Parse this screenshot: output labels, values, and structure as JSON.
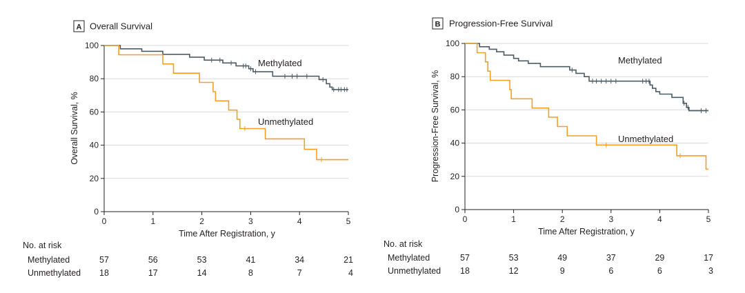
{
  "colors": {
    "methylated": "#4b5b65",
    "unmethylated": "#f29f26",
    "grid": "#d9d9d9",
    "axis": "#231f20"
  },
  "risk_title": "No. at risk",
  "chart_data": [
    {
      "type": "line",
      "panel_letter": "A",
      "title": "Overall Survival",
      "xlabel": "Time After Registration, y",
      "ylabel": "Overall Survival, %",
      "xlim": [
        0,
        5
      ],
      "ylim": [
        0,
        100
      ],
      "xticks": [
        "0",
        "1",
        "2",
        "3",
        "4",
        "5"
      ],
      "yticks": [
        "0",
        "20",
        "40",
        "60",
        "80",
        "100"
      ],
      "grid": true,
      "series": [
        {
          "name": "Methylated",
          "color": "#4b5b65",
          "steps": [
            [
              0,
              100
            ],
            [
              0.33,
              100
            ],
            [
              0.33,
              98
            ],
            [
              0.77,
              98
            ],
            [
              0.77,
              96.5
            ],
            [
              1.2,
              96.5
            ],
            [
              1.2,
              94.7
            ],
            [
              1.75,
              94.7
            ],
            [
              1.75,
              93
            ],
            [
              2.05,
              93
            ],
            [
              2.05,
              91.2
            ],
            [
              2.43,
              91.2
            ],
            [
              2.43,
              89.5
            ],
            [
              2.7,
              89.5
            ],
            [
              2.7,
              87.7
            ],
            [
              2.96,
              87.7
            ],
            [
              2.96,
              86
            ],
            [
              3.05,
              86
            ],
            [
              3.05,
              84.2
            ],
            [
              3.45,
              84.2
            ],
            [
              3.45,
              81.5
            ],
            [
              4.4,
              81.5
            ],
            [
              4.4,
              79.5
            ],
            [
              4.55,
              79.5
            ],
            [
              4.55,
              77
            ],
            [
              4.62,
              77
            ],
            [
              4.62,
              75
            ],
            [
              4.67,
              75
            ],
            [
              4.67,
              73.5
            ],
            [
              5.0,
              73.5
            ]
          ],
          "censors": [
            [
              2.2,
              91.2
            ],
            [
              2.37,
              91.2
            ],
            [
              2.6,
              89.5
            ],
            [
              2.85,
              87.7
            ],
            [
              2.9,
              87.7
            ],
            [
              3.0,
              86
            ],
            [
              3.1,
              84.2
            ],
            [
              3.7,
              81.5
            ],
            [
              3.85,
              81.5
            ],
            [
              3.95,
              81.5
            ],
            [
              4.15,
              81.5
            ],
            [
              4.48,
              79.5
            ],
            [
              4.7,
              73.5
            ],
            [
              4.8,
              73.5
            ],
            [
              4.85,
              73.5
            ],
            [
              4.92,
              73.5
            ],
            [
              4.97,
              73.5
            ]
          ],
          "label": "Methylated"
        },
        {
          "name": "Unmethylated",
          "color": "#f29f26",
          "steps": [
            [
              0,
              100
            ],
            [
              0.3,
              100
            ],
            [
              0.3,
              94.4
            ],
            [
              1.2,
              94.4
            ],
            [
              1.2,
              88.9
            ],
            [
              1.42,
              88.9
            ],
            [
              1.42,
              83.3
            ],
            [
              1.95,
              83.3
            ],
            [
              1.95,
              77.8
            ],
            [
              2.23,
              77.8
            ],
            [
              2.23,
              72.2
            ],
            [
              2.28,
              72.2
            ],
            [
              2.28,
              66.7
            ],
            [
              2.55,
              66.7
            ],
            [
              2.55,
              61.1
            ],
            [
              2.72,
              61.1
            ],
            [
              2.72,
              55.6
            ],
            [
              2.78,
              55.6
            ],
            [
              2.78,
              50
            ],
            [
              3.3,
              50
            ],
            [
              3.3,
              43.8
            ],
            [
              4.1,
              43.8
            ],
            [
              4.1,
              37.5
            ],
            [
              4.35,
              37.5
            ],
            [
              4.35,
              31.3
            ],
            [
              5.0,
              31.3
            ]
          ],
          "censors": [
            [
              2.88,
              50
            ],
            [
              4.45,
              31.3
            ]
          ],
          "label": "Unmethylated"
        }
      ],
      "risk_table": {
        "rows": [
          {
            "label": "Methylated",
            "values": [
              "57",
              "56",
              "53",
              "41",
              "34",
              "21"
            ]
          },
          {
            "label": "Unmethylated",
            "values": [
              "18",
              "17",
              "14",
              "8",
              "7",
              "4"
            ]
          }
        ]
      }
    },
    {
      "type": "line",
      "panel_letter": "B",
      "title": "Progression-Free Survival",
      "xlabel": "Time After Registration, y",
      "ylabel": "Progression-Free Survival, %",
      "xlim": [
        0,
        5
      ],
      "ylim": [
        0,
        100
      ],
      "xticks": [
        "0",
        "1",
        "2",
        "3",
        "4",
        "5"
      ],
      "yticks": [
        "0",
        "20",
        "40",
        "60",
        "80",
        "100"
      ],
      "grid": true,
      "series": [
        {
          "name": "Methylated",
          "color": "#4b5b65",
          "steps": [
            [
              0,
              100
            ],
            [
              0.3,
              100
            ],
            [
              0.3,
              98
            ],
            [
              0.5,
              98
            ],
            [
              0.5,
              96.5
            ],
            [
              0.65,
              96.5
            ],
            [
              0.65,
              95
            ],
            [
              0.8,
              95
            ],
            [
              0.8,
              93
            ],
            [
              1.0,
              93
            ],
            [
              1.0,
              91
            ],
            [
              1.1,
              91
            ],
            [
              1.1,
              89.5
            ],
            [
              1.3,
              89.5
            ],
            [
              1.3,
              88
            ],
            [
              1.55,
              88
            ],
            [
              1.55,
              86
            ],
            [
              2.15,
              86
            ],
            [
              2.15,
              84
            ],
            [
              2.28,
              84
            ],
            [
              2.28,
              82
            ],
            [
              2.45,
              82
            ],
            [
              2.45,
              80
            ],
            [
              2.55,
              80
            ],
            [
              2.55,
              77.3
            ],
            [
              3.8,
              77.3
            ],
            [
              3.8,
              75
            ],
            [
              3.85,
              75
            ],
            [
              3.85,
              73
            ],
            [
              3.92,
              73
            ],
            [
              3.92,
              71
            ],
            [
              4.0,
              71
            ],
            [
              4.0,
              69.5
            ],
            [
              4.25,
              69.5
            ],
            [
              4.25,
              67.5
            ],
            [
              4.48,
              67.5
            ],
            [
              4.48,
              64
            ],
            [
              4.55,
              64
            ],
            [
              4.55,
              61.5
            ],
            [
              4.6,
              61.5
            ],
            [
              4.6,
              59.5
            ],
            [
              5.0,
              59.5
            ]
          ],
          "censors": [
            [
              2.2,
              84
            ],
            [
              2.62,
              77.3
            ],
            [
              2.7,
              77.3
            ],
            [
              2.8,
              77.3
            ],
            [
              2.9,
              77.3
            ],
            [
              3.0,
              77.3
            ],
            [
              3.1,
              77.3
            ],
            [
              3.65,
              77.3
            ],
            [
              3.72,
              77.3
            ],
            [
              3.78,
              77.3
            ],
            [
              4.5,
              64
            ],
            [
              4.58,
              61.5
            ],
            [
              4.85,
              59.5
            ],
            [
              4.95,
              59.5
            ]
          ],
          "label": "Methylated"
        },
        {
          "name": "Unmethylated",
          "color": "#f29f26",
          "steps": [
            [
              0,
              100
            ],
            [
              0.25,
              100
            ],
            [
              0.25,
              94.4
            ],
            [
              0.42,
              94.4
            ],
            [
              0.42,
              88.9
            ],
            [
              0.47,
              88.9
            ],
            [
              0.47,
              83.3
            ],
            [
              0.52,
              83.3
            ],
            [
              0.52,
              77.8
            ],
            [
              0.92,
              77.8
            ],
            [
              0.92,
              72.2
            ],
            [
              0.95,
              72.2
            ],
            [
              0.95,
              66.7
            ],
            [
              1.38,
              66.7
            ],
            [
              1.38,
              61.1
            ],
            [
              1.72,
              61.1
            ],
            [
              1.72,
              55.6
            ],
            [
              1.9,
              55.6
            ],
            [
              1.9,
              50
            ],
            [
              2.1,
              50
            ],
            [
              2.1,
              44.4
            ],
            [
              2.7,
              44.4
            ],
            [
              2.7,
              38.9
            ],
            [
              4.35,
              38.9
            ],
            [
              4.35,
              32.4
            ],
            [
              4.95,
              32.4
            ],
            [
              4.95,
              24.3
            ],
            [
              5.0,
              24.3
            ]
          ],
          "censors": [
            [
              2.9,
              38.9
            ],
            [
              4.42,
              32.4
            ]
          ],
          "label": "Unmethylated"
        }
      ],
      "risk_table": {
        "rows": [
          {
            "label": "Methylated",
            "values": [
              "57",
              "53",
              "49",
              "37",
              "29",
              "17"
            ]
          },
          {
            "label": "Unmethylated",
            "values": [
              "18",
              "12",
              "9",
              "6",
              "6",
              "3"
            ]
          }
        ]
      }
    }
  ]
}
